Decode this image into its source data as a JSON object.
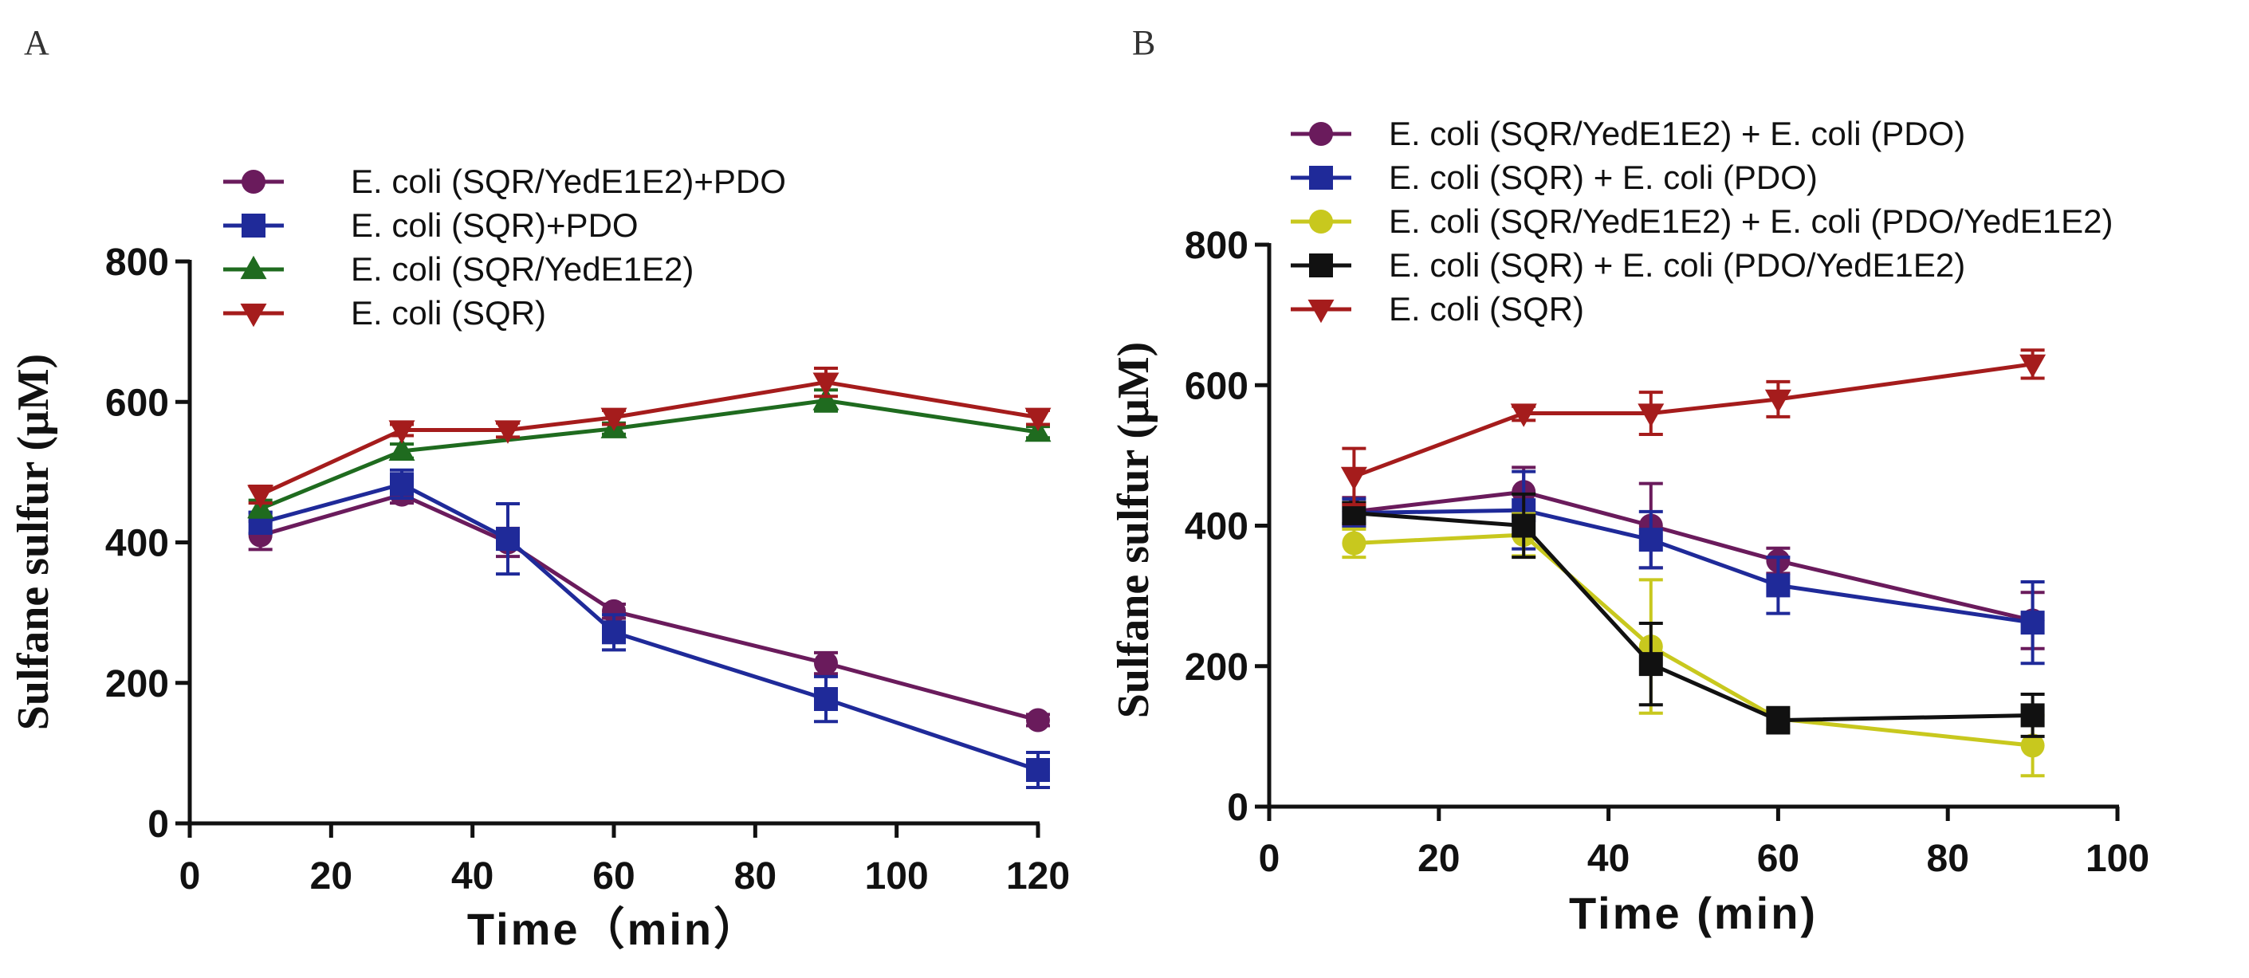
{
  "chart_data": [
    {
      "panel": "A",
      "type": "line",
      "xlabel": "Time（min）",
      "ylabel": "Sulfane sulfur (μM)",
      "xlim": [
        0,
        120
      ],
      "ylim": [
        0,
        800
      ],
      "xticks": [
        0,
        20,
        40,
        60,
        80,
        100,
        120
      ],
      "yticks": [
        0,
        200,
        400,
        600,
        800
      ],
      "legend_position": "top-left",
      "series": [
        {
          "name": "E. coli (SQR/YedE1E2)+PDO",
          "color": "#6a1b5c",
          "marker": "circle",
          "x": [
            10,
            30,
            45,
            60,
            90,
            120
          ],
          "y": [
            410,
            468,
            400,
            302,
            228,
            147
          ],
          "err": [
            20,
            12,
            20,
            10,
            15,
            8
          ]
        },
        {
          "name": "E. coli (SQR)+PDO",
          "color": "#1f2a99",
          "marker": "square",
          "x": [
            10,
            30,
            45,
            60,
            90,
            120
          ],
          "y": [
            428,
            483,
            405,
            272,
            177,
            76
          ],
          "err": [
            15,
            20,
            50,
            25,
            32,
            25
          ]
        },
        {
          "name": "E. coli (SQR/YedE1E2)",
          "color": "#1f6b1f",
          "marker": "triangle-up",
          "x": [
            10,
            30,
            60,
            90,
            120
          ],
          "y": [
            448,
            530,
            562,
            602,
            557
          ],
          "err": [
            12,
            10,
            8,
            15,
            8
          ]
        },
        {
          "name": "E. coli (SQR)",
          "color": "#a51c1c",
          "marker": "triangle-down",
          "x": [
            10,
            30,
            45,
            60,
            90,
            120
          ],
          "y": [
            468,
            560,
            560,
            578,
            628,
            578
          ],
          "err": [
            12,
            8,
            10,
            10,
            20,
            10
          ]
        }
      ]
    },
    {
      "panel": "B",
      "type": "line",
      "xlabel": "Time (min)",
      "ylabel": "Sulfane sulfur (μM)",
      "xlim": [
        0,
        100
      ],
      "ylim": [
        0,
        800
      ],
      "xticks": [
        0,
        20,
        40,
        60,
        80,
        100
      ],
      "yticks": [
        0,
        200,
        400,
        600,
        800
      ],
      "legend_position": "top",
      "series": [
        {
          "name": "E. coli (SQR/YedE1E2) + E. coli (PDO)",
          "color": "#6a1b5c",
          "marker": "circle",
          "x": [
            10,
            30,
            45,
            60,
            90
          ],
          "y": [
            420,
            448,
            400,
            350,
            265
          ],
          "err": [
            20,
            35,
            60,
            18,
            40
          ]
        },
        {
          "name": "E. coli (SQR) + E. coli (PDO)",
          "color": "#1f2a99",
          "marker": "square",
          "x": [
            10,
            30,
            45,
            60,
            90
          ],
          "y": [
            418,
            422,
            380,
            315,
            262
          ],
          "err": [
            20,
            55,
            40,
            40,
            58
          ]
        },
        {
          "name": "E. coli (SQR/YedE1E2) + E. coli (PDO/YedE1E2)",
          "color": "#c8c81e",
          "marker": "circle",
          "x": [
            10,
            30,
            45,
            60,
            90
          ],
          "y": [
            375,
            387,
            228,
            125,
            87
          ],
          "err": [
            20,
            30,
            95,
            15,
            43
          ]
        },
        {
          "name": "E. coli (SQR) + E. coli (PDO/YedE1E2)",
          "color": "#111111",
          "marker": "square",
          "x": [
            10,
            30,
            45,
            60,
            90
          ],
          "y": [
            418,
            400,
            203,
            123,
            130
          ],
          "err": [
            15,
            45,
            58,
            18,
            30
          ]
        },
        {
          "name": "E. coli (SQR)",
          "color": "#a51c1c",
          "marker": "triangle-down",
          "x": [
            10,
            30,
            45,
            60,
            90
          ],
          "y": [
            470,
            560,
            560,
            580,
            630
          ],
          "err": [
            40,
            10,
            30,
            25,
            20
          ]
        }
      ]
    }
  ]
}
